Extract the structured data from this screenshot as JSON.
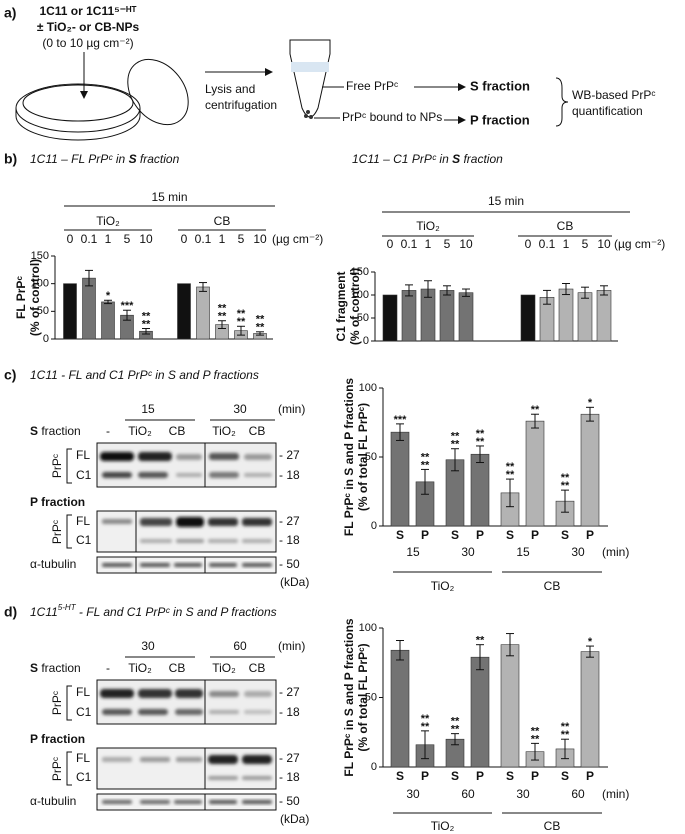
{
  "panel_a": {
    "label": "a)",
    "cells": [
      "1C11 or 1C11⁵⁻ᴴᵀ",
      "± TiO₂- or CB-NPs",
      "(0 to 10 µg cm⁻²)"
    ],
    "step": [
      "Lysis and",
      "centrifugation"
    ],
    "free": "Free PrPᶜ",
    "bound": "PrPᶜ bound to NPs",
    "s_fraction": "S fraction",
    "p_fraction": "P fraction",
    "quant": [
      "WB-based PrPᶜ",
      "quantification"
    ]
  },
  "panel_b": {
    "label": "b)",
    "title_left": [
      "1C11 – FL PrPᶜ in ",
      "S",
      " fraction"
    ],
    "title_right": [
      "1C11 – C1 PrPᶜ in ",
      "S",
      " fraction"
    ]
  },
  "panel_c": {
    "label": "c)",
    "title": "1C11 - FL and C1 PrPᶜ in S and P fractions",
    "times": [
      "15",
      "30"
    ],
    "min": "(min)",
    "s_fraction": [
      "S",
      " fraction"
    ],
    "p_fraction": "P fraction",
    "lanes": [
      "-",
      "TiO₂",
      "CB",
      "TiO₂",
      "CB"
    ],
    "prp": "PrPᶜ",
    "bands": [
      "FL",
      "C1"
    ],
    "markers": [
      "- 27",
      "- 18",
      "- 50"
    ],
    "tubulin": "α-tubulin",
    "kda": "(kDa)"
  },
  "panel_d": {
    "label": "d)",
    "title": [
      "1C11",
      "5-HT",
      " - FL and C1 PrPᶜ in S and P fractions"
    ],
    "times": [
      "30",
      "60"
    ],
    "min": "(min)",
    "s_fraction": [
      "S",
      " fraction"
    ],
    "p_fraction": "P fraction",
    "lanes": [
      "-",
      "TiO₂",
      "CB",
      "TiO₂",
      "CB"
    ],
    "prp": "PrPᶜ",
    "bands": [
      "FL",
      "C1"
    ],
    "markers": [
      "- 27",
      "- 18",
      "- 50"
    ],
    "tubulin": "α-tubulin",
    "kda": "(kDa)"
  },
  "chart_data": [
    {
      "type": "bar",
      "header": "15 min",
      "y_label": [
        "FL PrPᶜ",
        "(% of control)"
      ],
      "ylim": [
        0,
        150
      ],
      "yticks": [
        0,
        50,
        100,
        150
      ],
      "categories": [
        "0",
        "0.1",
        "1",
        "5",
        "10",
        "0",
        "0.1",
        "1",
        "5",
        "10"
      ],
      "unit": "(µg cm⁻²)",
      "groups": [
        "TiO₂",
        "CB"
      ],
      "values": [
        100,
        110,
        67,
        43,
        14,
        100,
        94,
        26,
        15,
        10
      ],
      "errors": [
        null,
        14,
        3,
        9,
        5,
        null,
        8,
        7,
        8,
        3
      ],
      "colors": [
        "#111111",
        "#737373",
        "#737373",
        "#737373",
        "#737373",
        "#111111",
        "#b3b3b3",
        "#b3b3b3",
        "#b3b3b3",
        "#b3b3b3"
      ],
      "annotations": [
        null,
        null,
        [
          "*"
        ],
        [
          "***"
        ],
        [
          "**",
          "**"
        ],
        null,
        null,
        [
          "**",
          "**"
        ],
        [
          "**",
          "**"
        ],
        [
          "**",
          "**"
        ]
      ]
    },
    {
      "type": "bar",
      "header": "15 min",
      "y_label": [
        "C1 fragment",
        "(% of control)"
      ],
      "ylim": [
        0,
        150
      ],
      "yticks": [
        0,
        50,
        100,
        150
      ],
      "categories": [
        "0",
        "0.1",
        "1",
        "5",
        "10",
        "0",
        "0.1",
        "1",
        "5",
        "10"
      ],
      "unit": "(µg cm⁻²)",
      "groups": [
        "TiO₂",
        "CB"
      ],
      "values": [
        100,
        110,
        113,
        110,
        105,
        100,
        95,
        113,
        105,
        110
      ],
      "errors": [
        null,
        12,
        18,
        10,
        8,
        null,
        15,
        12,
        12,
        10
      ],
      "colors": [
        "#111111",
        "#737373",
        "#737373",
        "#737373",
        "#737373",
        "#111111",
        "#b3b3b3",
        "#b3b3b3",
        "#b3b3b3",
        "#b3b3b3"
      ],
      "annotations": [
        null,
        null,
        null,
        null,
        null,
        null,
        null,
        null,
        null,
        null
      ]
    },
    {
      "type": "bar",
      "y_label": [
        "FL PrPᶜ in S and P fractions",
        "(% of total FL PrPᶜ)"
      ],
      "ylim": [
        0,
        100
      ],
      "yticks": [
        0,
        50,
        100
      ],
      "categories": [
        "S",
        "P",
        "S",
        "P",
        "S",
        "P",
        "S",
        "P"
      ],
      "times": [
        "15",
        "30",
        "15",
        "30"
      ],
      "unit": "(min)",
      "groups": [
        "TiO₂",
        "CB"
      ],
      "values": [
        68,
        32,
        48,
        52,
        24,
        76,
        18,
        81
      ],
      "errors": [
        6,
        9,
        8,
        6,
        10,
        5,
        8,
        5
      ],
      "colors": [
        "#737373",
        "#737373",
        "#737373",
        "#737373",
        "#b3b3b3",
        "#b3b3b3",
        "#b3b3b3",
        "#b3b3b3"
      ],
      "annotations": [
        [
          "***"
        ],
        [
          "**",
          "**"
        ],
        [
          "**",
          "**"
        ],
        [
          "**",
          "**"
        ],
        [
          "**",
          "**"
        ],
        [
          "**"
        ],
        [
          "**",
          "**"
        ],
        [
          "*"
        ]
      ]
    },
    {
      "type": "bar",
      "y_label": [
        "FL PrPᶜ in S and P fractions",
        "(% of total FL PrPᶜ)"
      ],
      "ylim": [
        0,
        100
      ],
      "yticks": [
        0,
        50,
        100
      ],
      "categories": [
        "S",
        "P",
        "S",
        "P",
        "S",
        "P",
        "S",
        "P"
      ],
      "times": [
        "30",
        "60",
        "30",
        "60"
      ],
      "unit": "(min)",
      "groups": [
        "TiO₂",
        "CB"
      ],
      "values": [
        84,
        16,
        20,
        79,
        88,
        11,
        13,
        83
      ],
      "errors": [
        7,
        10,
        4,
        9,
        8,
        6,
        7,
        4
      ],
      "colors": [
        "#737373",
        "#737373",
        "#737373",
        "#737373",
        "#b3b3b3",
        "#b3b3b3",
        "#b3b3b3",
        "#b3b3b3"
      ],
      "annotations": [
        null,
        [
          "**",
          "**"
        ],
        [
          "**",
          "**"
        ],
        [
          "**"
        ],
        null,
        [
          "**",
          "**"
        ],
        [
          "**",
          "**"
        ],
        [
          "*"
        ]
      ]
    }
  ]
}
